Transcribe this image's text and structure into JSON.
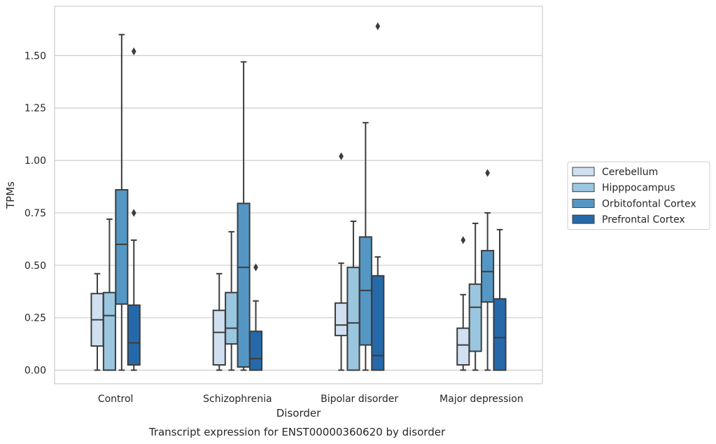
{
  "chart_data": {
    "type": "box",
    "title": "Transcript expression for ENST00000360620 by disorder",
    "xlabel": "Disorder",
    "ylabel": "TPMs",
    "ylim": [
      -0.065,
      1.735
    ],
    "yticks": [
      0.0,
      0.25,
      0.5,
      0.75,
      1.0,
      1.25,
      1.5
    ],
    "ytick_labels": [
      "0.00",
      "0.25",
      "0.50",
      "0.75",
      "1.00",
      "1.25",
      "1.50"
    ],
    "grid": true,
    "legend_placement": "center-right outside",
    "categories": [
      "Control",
      "Schizophrenia",
      "Bipolar disorder",
      "Major depression"
    ],
    "series": [
      {
        "name": "Cerebellum",
        "color": "#d0e0f0",
        "boxes": [
          {
            "whislo": 0.0,
            "q1": 0.115,
            "med": 0.24,
            "q3": 0.365,
            "whishi": 0.46,
            "fliers": []
          },
          {
            "whislo": 0.0,
            "q1": 0.025,
            "med": 0.18,
            "q3": 0.285,
            "whishi": 0.46,
            "fliers": []
          },
          {
            "whislo": 0.0,
            "q1": 0.165,
            "med": 0.215,
            "q3": 0.32,
            "whishi": 0.51,
            "fliers": [
              1.02
            ]
          },
          {
            "whislo": 0.0,
            "q1": 0.025,
            "med": 0.12,
            "q3": 0.2,
            "whishi": 0.36,
            "fliers": [
              0.62
            ]
          }
        ]
      },
      {
        "name": "Hipppocampus",
        "color": "#9ac6e0",
        "boxes": [
          {
            "whislo": 0.0,
            "q1": 0.0,
            "med": 0.26,
            "q3": 0.37,
            "whishi": 0.72,
            "fliers": []
          },
          {
            "whislo": 0.0,
            "q1": 0.125,
            "med": 0.2,
            "q3": 0.37,
            "whishi": 0.66,
            "fliers": []
          },
          {
            "whislo": 0.0,
            "q1": 0.0,
            "med": 0.225,
            "q3": 0.49,
            "whishi": 0.71,
            "fliers": []
          },
          {
            "whislo": 0.0,
            "q1": 0.09,
            "med": 0.3,
            "q3": 0.41,
            "whishi": 0.7,
            "fliers": []
          }
        ]
      },
      {
        "name": "Orbitofontal Cortex",
        "color": "#5497c5",
        "boxes": [
          {
            "whislo": 0.0,
            "q1": 0.315,
            "med": 0.6,
            "q3": 0.86,
            "whishi": 1.6,
            "fliers": []
          },
          {
            "whislo": 0.0,
            "q1": 0.015,
            "med": 0.49,
            "q3": 0.795,
            "whishi": 1.47,
            "fliers": []
          },
          {
            "whislo": 0.0,
            "q1": 0.12,
            "med": 0.38,
            "q3": 0.635,
            "whishi": 1.18,
            "fliers": []
          },
          {
            "whislo": 0.0,
            "q1": 0.325,
            "med": 0.47,
            "q3": 0.57,
            "whishi": 0.75,
            "fliers": [
              0.94
            ]
          }
        ]
      },
      {
        "name": "Prefrontal Cortex",
        "color": "#2669aa",
        "boxes": [
          {
            "whislo": 0.0,
            "q1": 0.025,
            "med": 0.13,
            "q3": 0.31,
            "whishi": 0.62,
            "fliers": [
              0.75,
              1.52
            ]
          },
          {
            "whislo": 0.0,
            "q1": 0.0,
            "med": 0.055,
            "q3": 0.185,
            "whishi": 0.33,
            "fliers": [
              0.49
            ]
          },
          {
            "whislo": 0.0,
            "q1": 0.0,
            "med": 0.07,
            "q3": 0.45,
            "whishi": 0.54,
            "fliers": [
              1.64
            ]
          },
          {
            "whislo": 0.0,
            "q1": 0.0,
            "med": 0.155,
            "q3": 0.34,
            "whishi": 0.67,
            "fliers": []
          }
        ]
      }
    ]
  }
}
